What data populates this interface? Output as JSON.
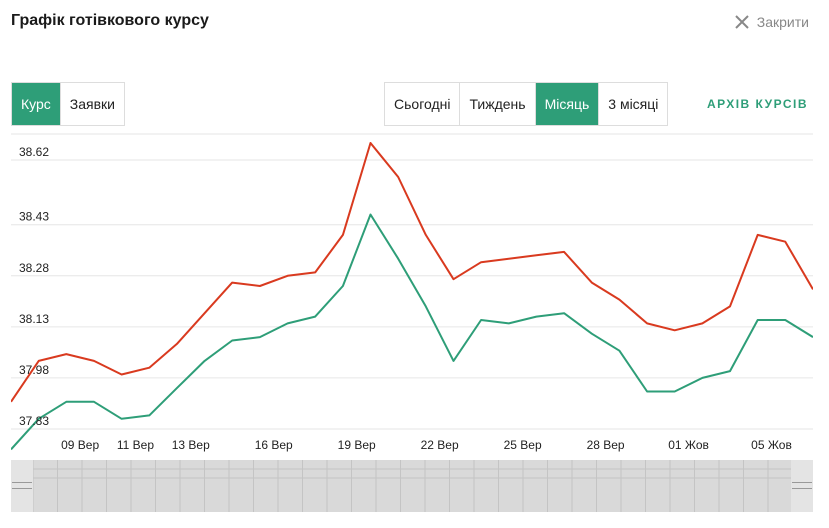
{
  "header": {
    "title": "Графік готівкового курсу",
    "close_label": "Закрити"
  },
  "mode_tabs": [
    {
      "label": "Курс",
      "active": true
    },
    {
      "label": "Заявки",
      "active": false
    }
  ],
  "period_tabs": [
    {
      "label": "Сьогодні",
      "active": false
    },
    {
      "label": "Тиждень",
      "active": false
    },
    {
      "label": "Місяць",
      "active": true
    },
    {
      "label": "3 місяці",
      "active": false
    }
  ],
  "archive_link": "АРХІВ КУРСІВ",
  "colors": {
    "accent": "#2e9e78",
    "sell": "#d93a1f",
    "buy": "#2e9e78",
    "grid": "#e6e6e6"
  },
  "chart_data": {
    "type": "line",
    "y_ticks": [
      "38.62",
      "38.43",
      "38.28",
      "38.13",
      "37.98",
      "37.83"
    ],
    "x_ticks": [
      "09 Вер",
      "11 Вер",
      "13 Вер",
      "16 Вер",
      "19 Вер",
      "22 Вер",
      "25 Вер",
      "28 Вер",
      "01 Жов",
      "05 Жов"
    ],
    "ylim": [
      37.83,
      38.62
    ],
    "x_tick_positions": [
      2.5,
      4.5,
      6.5,
      9.5,
      12.5,
      15.5,
      18.5,
      21.5,
      24.5,
      27.5
    ],
    "xlim": [
      0,
      29
    ],
    "series": [
      {
        "color": "#d93a1f",
        "values": [
          37.91,
          38.03,
          38.05,
          38.03,
          37.99,
          38.01,
          38.08,
          38.17,
          38.26,
          38.25,
          38.28,
          38.29,
          38.4,
          38.67,
          38.57,
          38.4,
          38.27,
          38.32,
          38.33,
          38.34,
          38.35,
          38.26,
          38.21,
          38.14,
          38.12,
          38.14,
          38.19,
          38.4,
          38.38,
          38.24
        ]
      },
      {
        "color": "#2e9e78",
        "values": [
          37.77,
          37.86,
          37.91,
          37.91,
          37.86,
          37.87,
          37.95,
          38.03,
          38.09,
          38.1,
          38.14,
          38.16,
          38.25,
          38.46,
          38.33,
          38.19,
          38.03,
          38.15,
          38.14,
          38.16,
          38.17,
          38.11,
          38.06,
          37.94,
          37.94,
          37.98,
          38.0,
          38.15,
          38.15,
          38.1
        ]
      }
    ]
  }
}
